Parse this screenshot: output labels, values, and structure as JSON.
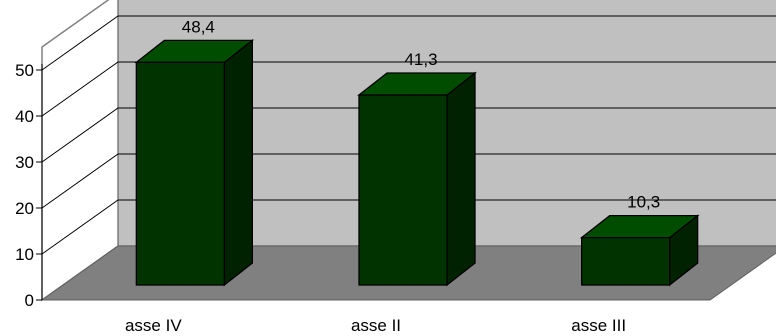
{
  "chart_data": {
    "type": "bar",
    "title": "",
    "xlabel": "",
    "ylabel": "",
    "categories": [
      "asse IV",
      "asse II",
      "asse III"
    ],
    "values": [
      48.4,
      41.3,
      10.3
    ],
    "value_labels": [
      "48,4",
      "41,3",
      "10,3"
    ],
    "y_ticks": [
      "0",
      "10",
      "20",
      "30",
      "40",
      "50"
    ],
    "ylim": [
      0,
      50
    ],
    "grid": true,
    "style": "3d-column",
    "colors": {
      "bar_front": "#003300",
      "bar_side": "#002200",
      "bar_top": "#004d00",
      "back_wall": "#c0c0c0",
      "floor": "#808080",
      "gridline": "#000000"
    }
  }
}
